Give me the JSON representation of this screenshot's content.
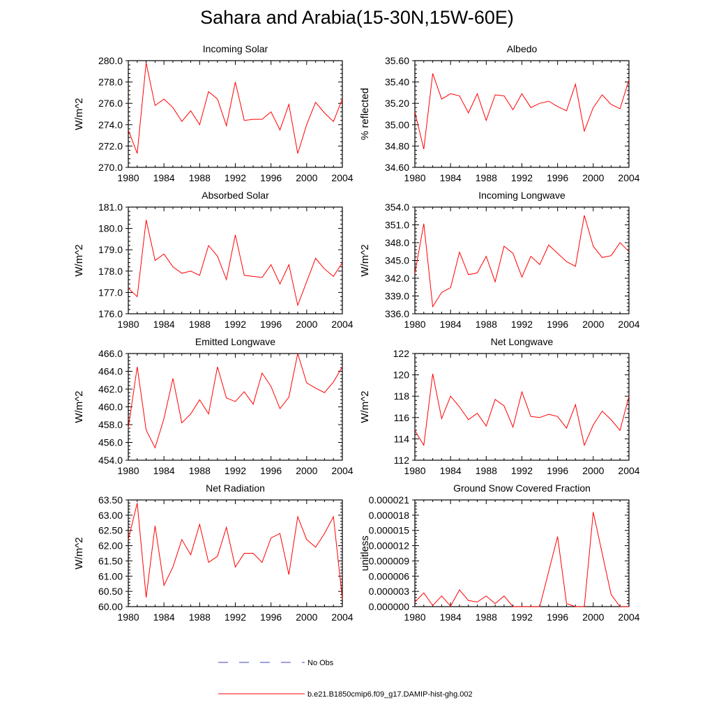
{
  "title": "Sahara and Arabia(15-30N,15W-60E)",
  "colors": {
    "model": "#ff0000",
    "obs": "#4040c0",
    "axis": "#000000"
  },
  "legend": [
    {
      "label": "No Obs",
      "style": "dashed",
      "color": "#4040c0"
    },
    {
      "label": "b.e21.B1850cmip6.f09_g17.DAMIP-hist-ghg.002",
      "style": "solid",
      "color": "#ff0000"
    }
  ],
  "chart_data": [
    {
      "type": "line",
      "title": "Incoming Solar",
      "ylabel": "W/m^2",
      "xlim": [
        1980,
        2004
      ],
      "ylim": [
        270,
        280
      ],
      "xticks": [
        "1980",
        "1984",
        "1988",
        "1992",
        "1996",
        "2000",
        "2004"
      ],
      "yticks": [
        "270.0",
        "272.0",
        "274.0",
        "276.0",
        "278.0",
        "280.0"
      ],
      "series": [
        {
          "x": [
            1980,
            1981,
            1982,
            1983,
            1984,
            1985,
            1986,
            1987,
            1988,
            1989,
            1990,
            1991,
            1992,
            1993,
            1994,
            1995,
            1996,
            1997,
            1998,
            1999,
            2000,
            2001,
            2002,
            2003,
            2004
          ],
          "values": [
            273.5,
            271.3,
            279.8,
            275.8,
            276.4,
            275.6,
            274.3,
            275.3,
            274.0,
            277.1,
            276.4,
            273.9,
            278.0,
            274.4,
            274.5,
            274.5,
            275.2,
            273.5,
            275.9,
            271.3,
            274.0,
            276.1,
            275.1,
            274.3,
            276.4
          ]
        }
      ]
    },
    {
      "type": "line",
      "title": "Albedo",
      "ylabel": "% reflected",
      "xlim": [
        1980,
        2004
      ],
      "ylim": [
        34.6,
        35.6
      ],
      "xticks": [
        "1980",
        "1984",
        "1988",
        "1992",
        "1996",
        "2000",
        "2004"
      ],
      "yticks": [
        "34.60",
        "34.80",
        "35.00",
        "35.20",
        "35.40",
        "35.60"
      ],
      "series": [
        {
          "x": [
            1980,
            1981,
            1982,
            1983,
            1984,
            1985,
            1986,
            1987,
            1988,
            1989,
            1990,
            1991,
            1992,
            1993,
            1994,
            1995,
            1996,
            1997,
            1998,
            1999,
            2000,
            2001,
            2002,
            2003,
            2004
          ],
          "values": [
            35.12,
            34.77,
            35.48,
            35.24,
            35.29,
            35.27,
            35.11,
            35.29,
            35.04,
            35.28,
            35.27,
            35.14,
            35.29,
            35.16,
            35.2,
            35.22,
            35.17,
            35.13,
            35.38,
            34.94,
            35.16,
            35.28,
            35.19,
            35.15,
            35.42
          ]
        }
      ]
    },
    {
      "type": "line",
      "title": "Absorbed Solar",
      "ylabel": "W/m^2",
      "xlim": [
        1980,
        2004
      ],
      "ylim": [
        176,
        181
      ],
      "xticks": [
        "1980",
        "1984",
        "1988",
        "1992",
        "1996",
        "2000",
        "2004"
      ],
      "yticks": [
        "176.0",
        "177.0",
        "178.0",
        "179.0",
        "180.0",
        "181.0"
      ],
      "series": [
        {
          "x": [
            1980,
            1981,
            1982,
            1983,
            1984,
            1985,
            1986,
            1987,
            1988,
            1989,
            1990,
            1991,
            1992,
            1993,
            1994,
            1995,
            1996,
            1997,
            1998,
            1999,
            2000,
            2001,
            2002,
            2003,
            2004
          ],
          "values": [
            177.2,
            176.8,
            180.4,
            178.5,
            178.8,
            178.2,
            177.9,
            178.0,
            177.8,
            179.2,
            178.7,
            177.6,
            179.7,
            177.8,
            177.75,
            177.7,
            178.3,
            177.4,
            178.3,
            176.4,
            177.5,
            178.6,
            178.1,
            177.75,
            178.4
          ]
        }
      ]
    },
    {
      "type": "line",
      "title": "Incoming Longwave",
      "ylabel": "W/m^2",
      "xlim": [
        1980,
        2004
      ],
      "ylim": [
        336,
        354
      ],
      "xticks": [
        "1980",
        "1984",
        "1988",
        "1992",
        "1996",
        "2000",
        "2004"
      ],
      "yticks": [
        "336.0",
        "339.0",
        "342.0",
        "345.0",
        "348.0",
        "351.0",
        "354.0"
      ],
      "series": [
        {
          "x": [
            1980,
            1981,
            1982,
            1983,
            1984,
            1985,
            1986,
            1987,
            1988,
            1989,
            1990,
            1991,
            1992,
            1993,
            1994,
            1995,
            1996,
            1997,
            1998,
            1999,
            2000,
            2001,
            2002,
            2003,
            2004
          ],
          "values": [
            342.8,
            351.2,
            337.2,
            339.6,
            340.4,
            346.4,
            342.6,
            342.9,
            345.7,
            341.4,
            347.4,
            346.2,
            342.2,
            345.7,
            344.3,
            347.6,
            346.2,
            344.8,
            344.0,
            352.6,
            347.4,
            345.5,
            345.8,
            348.0,
            346.5
          ]
        }
      ]
    },
    {
      "type": "line",
      "title": "Emitted Longwave",
      "ylabel": "W/m^2",
      "xlim": [
        1980,
        2004
      ],
      "ylim": [
        454,
        466
      ],
      "xticks": [
        "1980",
        "1984",
        "1988",
        "1992",
        "1996",
        "2000",
        "2004"
      ],
      "yticks": [
        "454.0",
        "456.0",
        "458.0",
        "460.0",
        "462.0",
        "464.0",
        "466.0"
      ],
      "series": [
        {
          "x": [
            1980,
            1981,
            1982,
            1983,
            1984,
            1985,
            1986,
            1987,
            1988,
            1989,
            1990,
            1991,
            1992,
            1993,
            1994,
            1995,
            1996,
            1997,
            1998,
            1999,
            2000,
            2001,
            2002,
            2003,
            2004
          ],
          "values": [
            457.6,
            464.5,
            457.4,
            455.4,
            458.7,
            463.2,
            458.2,
            459.2,
            460.8,
            459.2,
            464.5,
            461.0,
            460.6,
            461.7,
            460.3,
            463.8,
            462.3,
            459.8,
            461.1,
            466.0,
            462.7,
            462.1,
            461.6,
            462.8,
            464.5
          ]
        }
      ]
    },
    {
      "type": "line",
      "title": "Net Longwave",
      "ylabel": "W/m^2",
      "xlim": [
        1980,
        2004
      ],
      "ylim": [
        112,
        122
      ],
      "xticks": [
        "1980",
        "1984",
        "1988",
        "1992",
        "1996",
        "2000",
        "2004"
      ],
      "yticks": [
        "112",
        "114",
        "116",
        "118",
        "120",
        "122"
      ],
      "series": [
        {
          "x": [
            1980,
            1981,
            1982,
            1983,
            1984,
            1985,
            1986,
            1987,
            1988,
            1989,
            1990,
            1991,
            1992,
            1993,
            1994,
            1995,
            1996,
            1997,
            1998,
            1999,
            2000,
            2001,
            2002,
            2003,
            2004
          ],
          "values": [
            114.8,
            113.4,
            120.1,
            115.9,
            118.0,
            117.0,
            115.8,
            116.4,
            115.2,
            117.7,
            117.1,
            115.1,
            118.4,
            116.1,
            116.0,
            116.3,
            116.1,
            115.0,
            117.2,
            113.4,
            115.3,
            116.6,
            115.8,
            114.8,
            118.0
          ]
        }
      ]
    },
    {
      "type": "line",
      "title": "Net Radiation",
      "ylabel": "W/m^2",
      "xlim": [
        1980,
        2004
      ],
      "ylim": [
        60,
        63.5
      ],
      "xticks": [
        "1980",
        "1984",
        "1988",
        "1992",
        "1996",
        "2000",
        "2004"
      ],
      "yticks": [
        "60.00",
        "60.50",
        "61.00",
        "61.50",
        "62.00",
        "62.50",
        "63.00",
        "63.50"
      ],
      "series": [
        {
          "x": [
            1980,
            1981,
            1982,
            1983,
            1984,
            1985,
            1986,
            1987,
            1988,
            1989,
            1990,
            1991,
            1992,
            1993,
            1994,
            1995,
            1996,
            1997,
            1998,
            1999,
            2000,
            2001,
            2002,
            2003,
            2004
          ],
          "values": [
            62.2,
            63.4,
            60.3,
            62.65,
            60.7,
            61.3,
            62.2,
            61.7,
            62.7,
            61.45,
            61.65,
            62.6,
            61.3,
            61.75,
            61.75,
            61.45,
            62.25,
            62.4,
            61.05,
            62.95,
            62.2,
            61.95,
            62.4,
            62.95,
            60.25
          ]
        }
      ]
    },
    {
      "type": "line",
      "title": "Ground Snow Covered Fraction",
      "ylabel": "unitless",
      "xlim": [
        1980,
        2004
      ],
      "ylim": [
        0,
        2.1e-05
      ],
      "xticks": [
        "1980",
        "1984",
        "1988",
        "1992",
        "1996",
        "2000",
        "2004"
      ],
      "yticks": [
        "0.000000",
        "0.000003",
        "0.000006",
        "0.000009",
        "0.000012",
        "0.000015",
        "0.000018",
        "0.000021"
      ],
      "series": [
        {
          "x": [
            1980,
            1981,
            1982,
            1983,
            1984,
            1985,
            1986,
            1987,
            1988,
            1989,
            1990,
            1991,
            1992,
            1993,
            1994,
            1995,
            1996,
            1997,
            1998,
            1999,
            2000,
            2001,
            2002,
            2003,
            2004
          ],
          "values": [
            9e-07,
            2.7e-06,
            2e-07,
            2.1e-06,
            1e-07,
            3.3e-06,
            1.2e-06,
            9e-07,
            2.1e-06,
            6e-07,
            2.1e-06,
            0.0,
            0.0,
            0.0,
            0.0,
            6.9e-06,
            1.38e-05,
            6e-07,
            0.0,
            0.0,
            1.86e-05,
            1.05e-05,
            2.4e-06,
            0.0,
            0.0
          ]
        }
      ]
    }
  ]
}
